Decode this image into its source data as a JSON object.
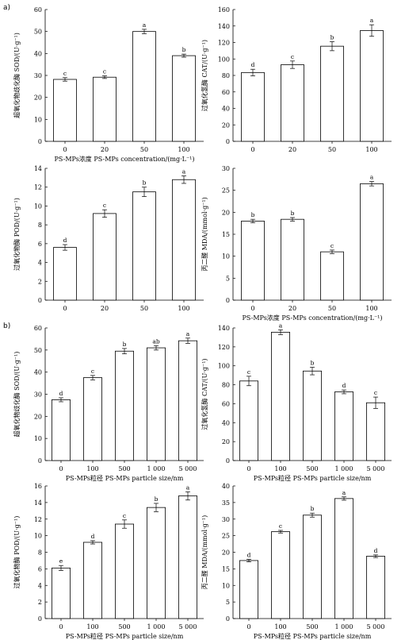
{
  "panel_labels": [
    "a)",
    "b)"
  ],
  "chart_data": [
    {
      "type": "bar",
      "panel": "a)",
      "categories": [
        "0",
        "20",
        "50",
        "100"
      ],
      "values": [
        28.2,
        29.2,
        50.0,
        39.0
      ],
      "errors": [
        0.8,
        0.6,
        1.0,
        0.7
      ],
      "letters": [
        "c",
        "c",
        "a",
        "b"
      ],
      "ylim": [
        0,
        60
      ],
      "yticks": [
        0,
        10,
        20,
        30,
        40,
        50,
        60
      ],
      "ylabel": "超氧化物歧化酶 SOD/(U·g⁻¹)",
      "xlabel": "PS-MPs浓度 PS-MPs concentration/(mg·L⁻¹)"
    },
    {
      "type": "bar",
      "categories": [
        "0",
        "20",
        "50",
        "100"
      ],
      "values": [
        83.5,
        93.0,
        115.5,
        134.5
      ],
      "errors": [
        4.0,
        4.5,
        5.5,
        7.0
      ],
      "letters": [
        "d",
        "c",
        "b",
        "a"
      ],
      "ylim": [
        0,
        160
      ],
      "yticks": [
        0,
        20,
        40,
        60,
        80,
        100,
        120,
        140,
        160
      ],
      "ylabel": "过氧化氢酶 CAT/(U·g⁻¹)",
      "xlabel": ""
    },
    {
      "type": "bar",
      "categories": [
        "0",
        "20",
        "50",
        "100"
      ],
      "values": [
        5.6,
        9.2,
        11.5,
        12.8
      ],
      "errors": [
        0.3,
        0.4,
        0.5,
        0.4
      ],
      "letters": [
        "d",
        "c",
        "b",
        "a"
      ],
      "ylim": [
        0,
        14
      ],
      "yticks": [
        0,
        2,
        4,
        6,
        8,
        10,
        12,
        14
      ],
      "ylabel": "过氧化物酶 POD/(U·g⁻¹)",
      "xlabel": ""
    },
    {
      "type": "bar",
      "categories": [
        "0",
        "20",
        "50",
        "100"
      ],
      "values": [
        18.0,
        18.4,
        11.0,
        26.5
      ],
      "errors": [
        0.4,
        0.4,
        0.4,
        0.5
      ],
      "letters": [
        "b",
        "b",
        "c",
        "a"
      ],
      "ylim": [
        0,
        30
      ],
      "yticks": [
        0,
        5,
        10,
        15,
        20,
        25,
        30
      ],
      "ylabel": "丙二醛 MDA/(mmol·g⁻¹)",
      "xlabel": "PS-MPs浓度 PS-MPs concentration/(mg·L⁻¹)"
    },
    {
      "type": "bar",
      "panel": "b)",
      "categories": [
        "0",
        "100",
        "500",
        "1 000",
        "5 000"
      ],
      "values": [
        27.5,
        37.5,
        49.5,
        51.0,
        54.2
      ],
      "errors": [
        0.9,
        1.0,
        1.2,
        1.0,
        1.2
      ],
      "letters": [
        "d",
        "c",
        "b",
        "ab",
        "a"
      ],
      "ylim": [
        0,
        60
      ],
      "yticks": [
        0,
        10,
        20,
        30,
        40,
        50,
        60
      ],
      "ylabel": "超氧化物歧化酶 SOD/(U·g⁻¹)",
      "xlabel": "PS-MPs粒径 PS-MPs particle size/nm"
    },
    {
      "type": "bar",
      "categories": [
        "0",
        "100",
        "500",
        "1 000",
        "5 000"
      ],
      "values": [
        84.0,
        135.5,
        94.5,
        72.5,
        61.0
      ],
      "errors": [
        5.0,
        2.5,
        4.0,
        2.0,
        6.0
      ],
      "letters": [
        "c",
        "a",
        "b",
        "d",
        "c"
      ],
      "ylim": [
        0,
        140
      ],
      "yticks": [
        0,
        20,
        40,
        60,
        80,
        100,
        120,
        140
      ],
      "ylabel": "过氧化氢酶 CAT/(U·g⁻¹)",
      "xlabel": "PS-MPs粒径 PS-MPs particle size/nm"
    },
    {
      "type": "bar",
      "categories": [
        "0",
        "100",
        "500",
        "1 000",
        "5 000"
      ],
      "values": [
        6.1,
        9.2,
        11.4,
        13.4,
        14.8
      ],
      "errors": [
        0.3,
        0.2,
        0.5,
        0.5,
        0.5
      ],
      "letters": [
        "e",
        "d",
        "c",
        "b",
        "a"
      ],
      "ylim": [
        0,
        16
      ],
      "yticks": [
        0,
        2,
        4,
        6,
        8,
        10,
        12,
        14,
        16
      ],
      "ylabel": "过氧化物酶 POD/(U·g⁻¹)",
      "xlabel": "PS-MPs粒径 PS-MPs particle size/nm"
    },
    {
      "type": "bar",
      "categories": [
        "0",
        "100",
        "500",
        "1 000",
        "5 000"
      ],
      "values": [
        17.5,
        26.2,
        31.2,
        36.2,
        18.8
      ],
      "errors": [
        0.4,
        0.4,
        0.6,
        0.5,
        0.4
      ],
      "letters": [
        "d",
        "c",
        "b",
        "a",
        "d"
      ],
      "ylim": [
        0,
        40
      ],
      "yticks": [
        0,
        5,
        10,
        15,
        20,
        25,
        30,
        35,
        40
      ],
      "ylabel": "丙二醛 MDA/(mmol·g⁻¹)",
      "xlabel": "PS-MPs粒径 PS-MPs particle size/nm"
    }
  ]
}
